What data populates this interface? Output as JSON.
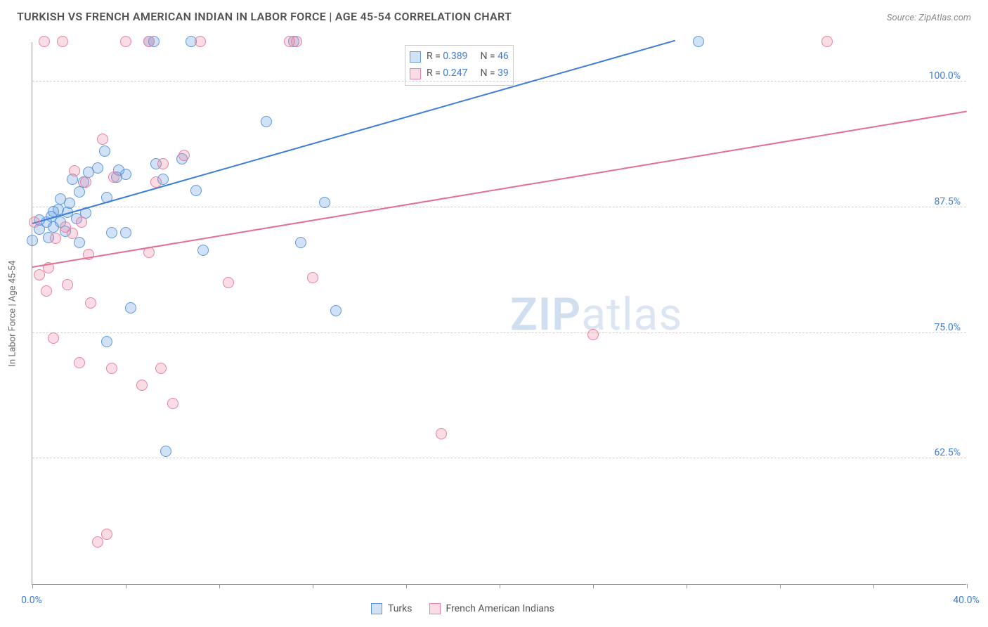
{
  "title": "TURKISH VS FRENCH AMERICAN INDIAN IN LABOR FORCE | AGE 45-54 CORRELATION CHART",
  "source_label": "Source: ZipAtlas.com",
  "ylabel": "In Labor Force | Age 45-54",
  "watermark": {
    "part1": "ZIP",
    "part2": "atlas"
  },
  "chart": {
    "type": "scatter",
    "background_color": "#ffffff",
    "grid_color": "#d0d0d0",
    "axis_color": "#999999",
    "label_color": "#3b7dd8",
    "xlim": [
      0,
      40
    ],
    "ylim": [
      50,
      104
    ],
    "xticks": [
      0,
      4,
      8,
      12,
      16,
      20,
      24,
      28,
      32,
      36,
      40
    ],
    "xtick_labels": {
      "0": "0.0%",
      "40": "40.0%"
    },
    "yticks": [
      62.5,
      75.0,
      87.5,
      100.0
    ],
    "ytick_labels": [
      "62.5%",
      "75.0%",
      "87.5%",
      "100.0%"
    ],
    "marker_radius": 8,
    "marker_opacity_fill": 0.25,
    "marker_opacity_stroke": 0.9,
    "line_width": 2
  },
  "series": [
    {
      "key": "turks",
      "name": "Turks",
      "color": "#3b7dd8",
      "fill": "rgba(93,152,221,0.28)",
      "stroke": "#5d98dd",
      "R_label": "R = ",
      "R": "0.389",
      "N_label": "N = ",
      "N": "46",
      "trend": {
        "x1": 0,
        "y1": 85.8,
        "x2": 27.5,
        "y2": 104
      },
      "points": [
        [
          0.0,
          84.2
        ],
        [
          0.3,
          86.2
        ],
        [
          0.3,
          85.3
        ],
        [
          0.6,
          86.0
        ],
        [
          0.7,
          84.5
        ],
        [
          0.8,
          86.6
        ],
        [
          0.9,
          87.1
        ],
        [
          0.9,
          85.5
        ],
        [
          1.1,
          87.3
        ],
        [
          1.2,
          86.0
        ],
        [
          1.2,
          88.3
        ],
        [
          1.4,
          85.1
        ],
        [
          1.5,
          87.0
        ],
        [
          1.6,
          87.9
        ],
        [
          1.7,
          90.3
        ],
        [
          1.9,
          86.4
        ],
        [
          2.0,
          89.0
        ],
        [
          2.0,
          84.0
        ],
        [
          2.2,
          90.0
        ],
        [
          2.3,
          86.9
        ],
        [
          2.4,
          91.0
        ],
        [
          2.8,
          91.4
        ],
        [
          3.1,
          93.1
        ],
        [
          3.2,
          88.5
        ],
        [
          3.2,
          74.1
        ],
        [
          3.4,
          85.0
        ],
        [
          3.6,
          90.5
        ],
        [
          3.7,
          91.2
        ],
        [
          4.0,
          90.8
        ],
        [
          4.0,
          85.0
        ],
        [
          4.2,
          77.5
        ],
        [
          5.0,
          104
        ],
        [
          5.2,
          104
        ],
        [
          5.3,
          91.8
        ],
        [
          5.6,
          90.3
        ],
        [
          5.7,
          63.2
        ],
        [
          6.4,
          92.3
        ],
        [
          6.8,
          104
        ],
        [
          7.0,
          89.2
        ],
        [
          7.3,
          83.2
        ],
        [
          10.0,
          96.0
        ],
        [
          11.2,
          104
        ],
        [
          11.5,
          84.0
        ],
        [
          12.5,
          88.0
        ],
        [
          13.0,
          77.2
        ],
        [
          28.5,
          104
        ]
      ]
    },
    {
      "key": "fai",
      "name": "French American Indians",
      "color": "#e36f91",
      "fill": "rgba(232,129,159,0.28)",
      "stroke": "#e8819f",
      "R_label": "R = ",
      "R": "0.247",
      "N_label": "N = ",
      "N": "39",
      "trend": {
        "x1": 0,
        "y1": 81.5,
        "x2": 40,
        "y2": 97.0
      },
      "points": [
        [
          0.1,
          86.0
        ],
        [
          0.3,
          80.8
        ],
        [
          0.5,
          104
        ],
        [
          0.6,
          79.2
        ],
        [
          0.7,
          81.5
        ],
        [
          0.9,
          74.5
        ],
        [
          1.0,
          84.4
        ],
        [
          1.3,
          104
        ],
        [
          1.4,
          85.5
        ],
        [
          1.5,
          79.8
        ],
        [
          1.7,
          84.9
        ],
        [
          1.8,
          91.1
        ],
        [
          2.0,
          72.0
        ],
        [
          2.1,
          86.0
        ],
        [
          2.3,
          90.0
        ],
        [
          2.4,
          82.8
        ],
        [
          2.5,
          78.0
        ],
        [
          2.8,
          54.2
        ],
        [
          3.0,
          94.3
        ],
        [
          3.2,
          55.0
        ],
        [
          3.4,
          71.5
        ],
        [
          3.5,
          90.5
        ],
        [
          4.0,
          104
        ],
        [
          4.7,
          69.8
        ],
        [
          5.0,
          83.0
        ],
        [
          5.0,
          104
        ],
        [
          5.3,
          90.0
        ],
        [
          5.5,
          71.5
        ],
        [
          5.6,
          91.8
        ],
        [
          6.0,
          68.0
        ],
        [
          6.5,
          92.7
        ],
        [
          7.2,
          104
        ],
        [
          8.4,
          80.0
        ],
        [
          11.0,
          104
        ],
        [
          11.3,
          104
        ],
        [
          12.0,
          80.5
        ],
        [
          17.5,
          65.0
        ],
        [
          24.0,
          74.8
        ],
        [
          34.0,
          104
        ]
      ]
    }
  ],
  "legend_bottom": {
    "items": [
      "Turks",
      "French American Indians"
    ]
  }
}
